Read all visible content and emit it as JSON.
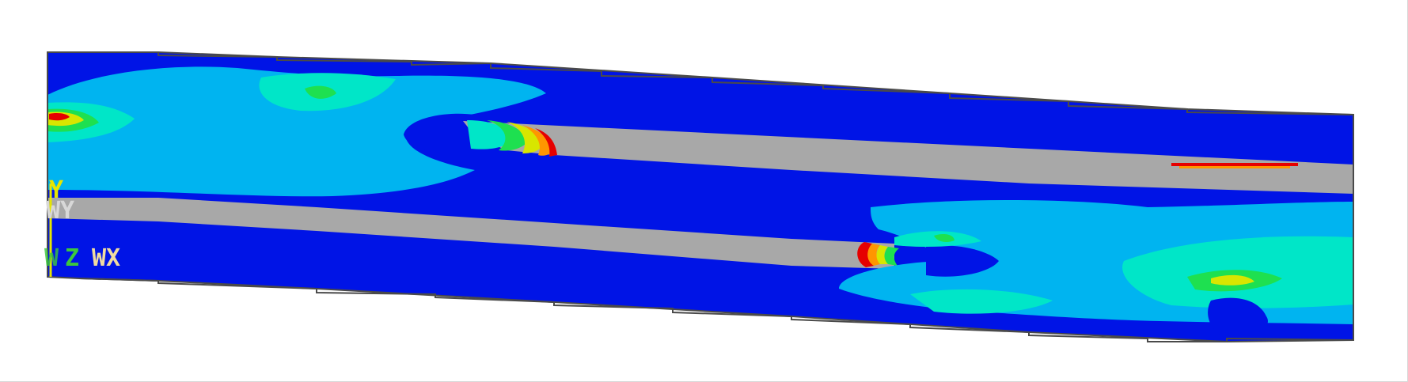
{
  "viewport": {
    "description_free": true
  },
  "legend_colors": {
    "min_blue": "#0014e6",
    "cyan": "#00b4f0",
    "aqua": "#00e6c8",
    "green": "#1ee050",
    "yellow": "#d8e600",
    "orange": "#ff9600",
    "red": "#e60000",
    "out_of_range_gray": "#a8a8a8",
    "outline": "#4a4a4a"
  },
  "triad": {
    "y_label": "Y",
    "wy_label": "WY",
    "z_label": "Z",
    "wx_label": "WX",
    "z_prefix": "W",
    "y_color": "#e6e600",
    "wy_color": "#d8d8d8",
    "z_color": "#3cc83c",
    "wx_color": "#f0dca0"
  }
}
